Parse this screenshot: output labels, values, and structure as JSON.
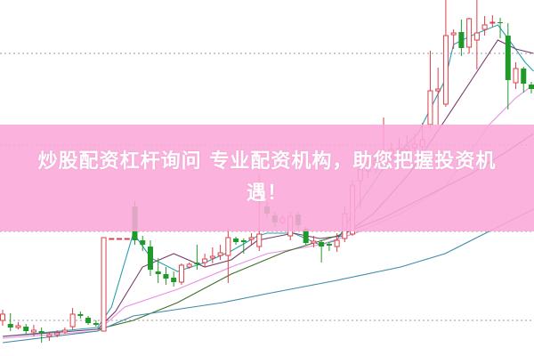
{
  "banner": {
    "line1": "炒股配资杠杆询问 专业配资机构，助您把握投资机",
    "line2": "遇！",
    "background_color": "#faa8da",
    "text_color": "#ffffff"
  },
  "chart_data": {
    "type": "candlestick",
    "title": "",
    "xlabel": "",
    "ylabel": "",
    "axes_visible": false,
    "grid": "dotted horizontal",
    "ylim": [
      0,
      400
    ],
    "gridlines": [
      340,
      237,
      140,
      40
    ],
    "colors": {
      "up": "#d9404a",
      "down": "#1f9a2a",
      "grid": "#999999"
    },
    "candles": [
      {
        "o": 40,
        "c": 47,
        "h": 52,
        "l": 34
      },
      {
        "o": 36,
        "c": 32,
        "h": 48,
        "l": 28
      },
      {
        "o": 32,
        "c": 34,
        "h": 38,
        "l": 30
      },
      {
        "o": 33,
        "c": 28,
        "h": 36,
        "l": 25
      },
      {
        "o": 27,
        "c": 29,
        "h": 35,
        "l": 22
      },
      {
        "o": 28,
        "c": 26,
        "h": 32,
        "l": 15
      },
      {
        "o": 22,
        "c": 24,
        "h": 27,
        "l": 17
      },
      {
        "o": 24,
        "c": 26,
        "h": 29,
        "l": 21
      },
      {
        "o": 27,
        "c": 29,
        "h": 32,
        "l": 25
      },
      {
        "o": 33,
        "c": 47,
        "h": 54,
        "l": 30
      },
      {
        "o": 47,
        "c": 45,
        "h": 50,
        "l": 42
      },
      {
        "o": 43,
        "c": 37,
        "h": 45,
        "l": 35
      },
      {
        "o": 37,
        "c": 35,
        "h": 40,
        "l": 33
      },
      {
        "o": 28,
        "c": 133,
        "h": 133,
        "l": 28
      },
      {
        "o": 132,
        "c": 132,
        "h": 132,
        "l": 132
      },
      {
        "o": 132,
        "c": 132,
        "h": 132,
        "l": 132
      },
      {
        "o": 132,
        "c": 132,
        "h": 132,
        "l": 132
      },
      {
        "o": 168,
        "c": 130,
        "h": 174,
        "l": 125
      },
      {
        "o": 130,
        "c": 125,
        "h": 135,
        "l": 118
      },
      {
        "o": 123,
        "c": 97,
        "h": 130,
        "l": 90
      },
      {
        "o": 95,
        "c": 92,
        "h": 110,
        "l": 82
      },
      {
        "o": 92,
        "c": 87,
        "h": 100,
        "l": 80
      },
      {
        "o": 88,
        "c": 83,
        "h": 95,
        "l": 78
      },
      {
        "o": 83,
        "c": 102,
        "h": 104,
        "l": 80
      },
      {
        "o": 100,
        "c": 103,
        "h": 105,
        "l": 98
      },
      {
        "o": 105,
        "c": 103,
        "h": 125,
        "l": 97
      },
      {
        "o": 105,
        "c": 109,
        "h": 115,
        "l": 100
      },
      {
        "o": 110,
        "c": 112,
        "h": 122,
        "l": 104
      },
      {
        "o": 113,
        "c": 116,
        "h": 125,
        "l": 108
      },
      {
        "o": 113,
        "c": 133,
        "h": 143,
        "l": 82
      },
      {
        "o": 132,
        "c": 128,
        "h": 134,
        "l": 125
      },
      {
        "o": 130,
        "c": 128,
        "h": 132,
        "l": 115
      },
      {
        "o": 131,
        "c": 133,
        "h": 138,
        "l": 125
      },
      {
        "o": 123,
        "c": 137,
        "h": 204,
        "l": 118
      },
      {
        "o": 168,
        "c": 160,
        "h": 173,
        "l": 155
      },
      {
        "o": 158,
        "c": 150,
        "h": 162,
        "l": 145
      },
      {
        "o": 150,
        "c": 155,
        "h": 158,
        "l": 148
      },
      {
        "o": 135,
        "c": 157,
        "h": 162,
        "l": 130
      },
      {
        "o": 159,
        "c": 147,
        "h": 162,
        "l": 142
      },
      {
        "o": 143,
        "c": 127,
        "h": 145,
        "l": 125
      },
      {
        "o": 127,
        "c": 129,
        "h": 135,
        "l": 122
      },
      {
        "o": 128,
        "c": 123,
        "h": 130,
        "l": 105
      },
      {
        "o": 126,
        "c": 124,
        "h": 128,
        "l": 118
      },
      {
        "o": 123,
        "c": 130,
        "h": 138,
        "l": 117
      },
      {
        "o": 132,
        "c": 160,
        "h": 168,
        "l": 128
      },
      {
        "o": 137,
        "c": 192,
        "h": 198,
        "l": 135
      },
      {
        "o": 197,
        "c": 210,
        "h": 225,
        "l": 165
      },
      {
        "o": 208,
        "c": 212,
        "h": 220,
        "l": 200
      },
      {
        "o": 215,
        "c": 220,
        "h": 230,
        "l": 205
      },
      {
        "o": 225,
        "c": 228,
        "h": 268,
        "l": 220
      },
      {
        "o": 228,
        "c": 232,
        "h": 240,
        "l": 222
      },
      {
        "o": 230,
        "c": 233,
        "h": 245,
        "l": 225
      },
      {
        "o": 232,
        "c": 236,
        "h": 248,
        "l": 228
      },
      {
        "o": 234,
        "c": 238,
        "h": 250,
        "l": 230
      },
      {
        "o": 235,
        "c": 243,
        "h": 262,
        "l": 230
      },
      {
        "o": 260,
        "c": 298,
        "h": 343,
        "l": 255
      },
      {
        "o": 298,
        "c": 300,
        "h": 324,
        "l": 260
      },
      {
        "o": 283,
        "c": 360,
        "h": 400,
        "l": 280
      },
      {
        "o": 361,
        "c": 363,
        "h": 367,
        "l": 345
      },
      {
        "o": 364,
        "c": 346,
        "h": 378,
        "l": 337
      },
      {
        "o": 347,
        "c": 379,
        "h": 380,
        "l": 340
      },
      {
        "o": 355,
        "c": 363,
        "h": 400,
        "l": 322
      },
      {
        "o": 367,
        "c": 372,
        "h": 382,
        "l": 360
      },
      {
        "o": 374,
        "c": 375,
        "h": 383,
        "l": 370
      },
      {
        "o": 375,
        "c": 374,
        "h": 380,
        "l": 357
      },
      {
        "o": 360,
        "c": 310,
        "h": 374,
        "l": 277
      },
      {
        "o": 307,
        "c": 323,
        "h": 330,
        "l": 300
      },
      {
        "o": 323,
        "c": 306,
        "h": 325,
        "l": 296
      },
      {
        "o": 305,
        "c": 300,
        "h": 308,
        "l": 295
      }
    ],
    "moving_averages": [
      {
        "color": "#2a9fb0",
        "points": [
          [
            0,
            22
          ],
          [
            12.2,
            32
          ],
          [
            14,
            55
          ],
          [
            16.8,
            138
          ],
          [
            19.1,
            110
          ],
          [
            22.5,
            95
          ],
          [
            26,
            105
          ],
          [
            29.4,
            118
          ],
          [
            32.8,
            135
          ],
          [
            34,
            138
          ],
          [
            37.4,
            138
          ],
          [
            40.8,
            125
          ],
          [
            43,
            130
          ],
          [
            45.4,
            165
          ],
          [
            48.9,
            210
          ],
          [
            53.4,
            250
          ],
          [
            56.9,
            310
          ],
          [
            58,
            350
          ],
          [
            60.3,
            360
          ],
          [
            63.7,
            372
          ],
          [
            64.9,
            358
          ],
          [
            67.2,
            330
          ],
          [
            68.3,
            320
          ]
        ]
      },
      {
        "color": "#7a3a6e",
        "points": [
          [
            0,
            22
          ],
          [
            12.2,
            30
          ],
          [
            14.5,
            50
          ],
          [
            18,
            100
          ],
          [
            22,
            115
          ],
          [
            26,
            100
          ],
          [
            29.4,
            108
          ],
          [
            32.8,
            130
          ],
          [
            37.4,
            138
          ],
          [
            40.8,
            132
          ],
          [
            43.7,
            135
          ],
          [
            47.7,
            160
          ],
          [
            52.3,
            205
          ],
          [
            56.9,
            265
          ],
          [
            60.3,
            310
          ],
          [
            63.7,
            355
          ],
          [
            66,
            345
          ],
          [
            68.3,
            340
          ]
        ]
      },
      {
        "color": "#e88fe0",
        "points": [
          [
            0,
            20
          ],
          [
            12.2,
            28
          ],
          [
            15.7,
            55
          ],
          [
            22.5,
            75
          ],
          [
            29.4,
            100
          ],
          [
            34,
            115
          ],
          [
            40.8,
            125
          ],
          [
            45.4,
            138
          ],
          [
            51.2,
            160
          ],
          [
            56.9,
            190
          ],
          [
            62.6,
            260
          ],
          [
            66,
            290
          ],
          [
            68.3,
            305
          ]
        ]
      },
      {
        "color": "#3f6e2a",
        "points": [
          [
            12.2,
            30
          ],
          [
            16.8,
            40
          ],
          [
            22.5,
            60
          ],
          [
            29.4,
            92
          ],
          [
            36.3,
            117
          ],
          [
            43,
            135
          ],
          [
            48.9,
            155
          ],
          [
            54.6,
            180
          ],
          [
            60.3,
            205
          ],
          [
            64.9,
            230
          ],
          [
            68.3,
            250
          ]
        ]
      },
      {
        "color": "#3d8aa8",
        "points": [
          [
            0,
            15
          ],
          [
            12.2,
            28
          ],
          [
            16.8,
            45
          ],
          [
            28.3,
            60
          ],
          [
            34,
            70
          ],
          [
            43,
            85
          ],
          [
            51.2,
            100
          ],
          [
            56.9,
            115
          ],
          [
            63.7,
            145
          ],
          [
            68.3,
            165
          ]
        ]
      }
    ]
  }
}
